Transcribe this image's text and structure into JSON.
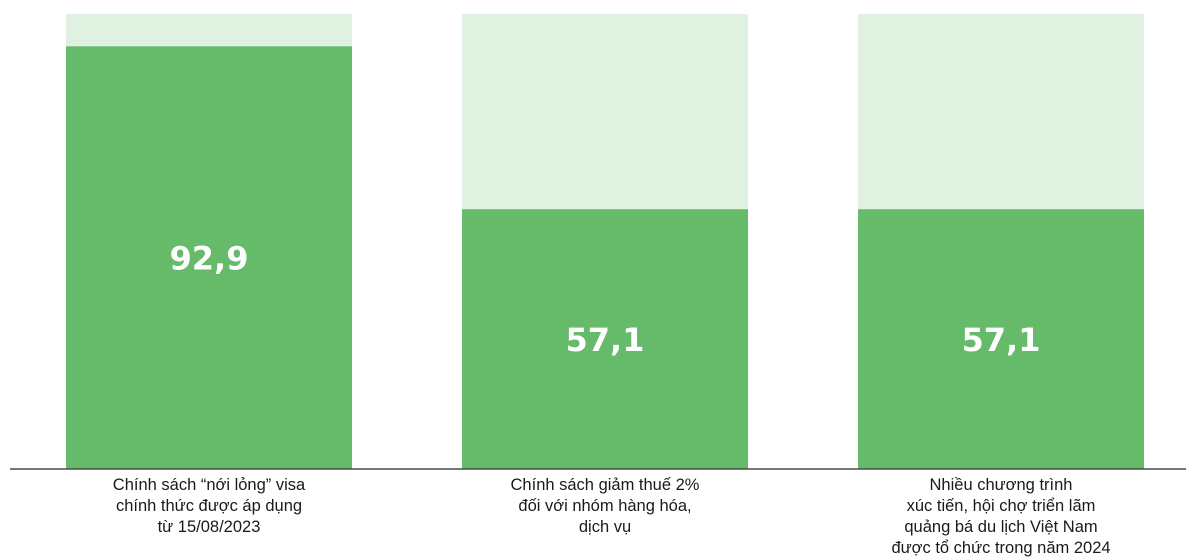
{
  "chart_data": {
    "type": "bar",
    "stacked_to_100": true,
    "categories": [
      [
        "Chính sách “nới lỏng” visa",
        "chính thức được áp dụng",
        "từ 15/08/2023"
      ],
      [
        "Chính sách giảm thuế 2%",
        "đối với nhóm hàng hóa,",
        "dịch vụ"
      ],
      [
        "Nhiều chương trình",
        "xúc tiến, hội chợ triển lãm",
        "quảng bá du lịch Việt Nam",
        "được tổ chức trong năm 2024"
      ]
    ],
    "values": [
      92.9,
      57.1,
      57.1
    ],
    "value_labels": [
      "92,9",
      "57,1",
      "57,1"
    ],
    "ylim": [
      0,
      100
    ],
    "title": "",
    "xlabel": "",
    "ylabel": "",
    "grid": false,
    "colors": {
      "value": "#66bb6a",
      "remainder": "#e0f1e2",
      "baseline": "#4a4a4a",
      "value_text": "#ffffff",
      "label_text": "#1a1a1a"
    }
  }
}
